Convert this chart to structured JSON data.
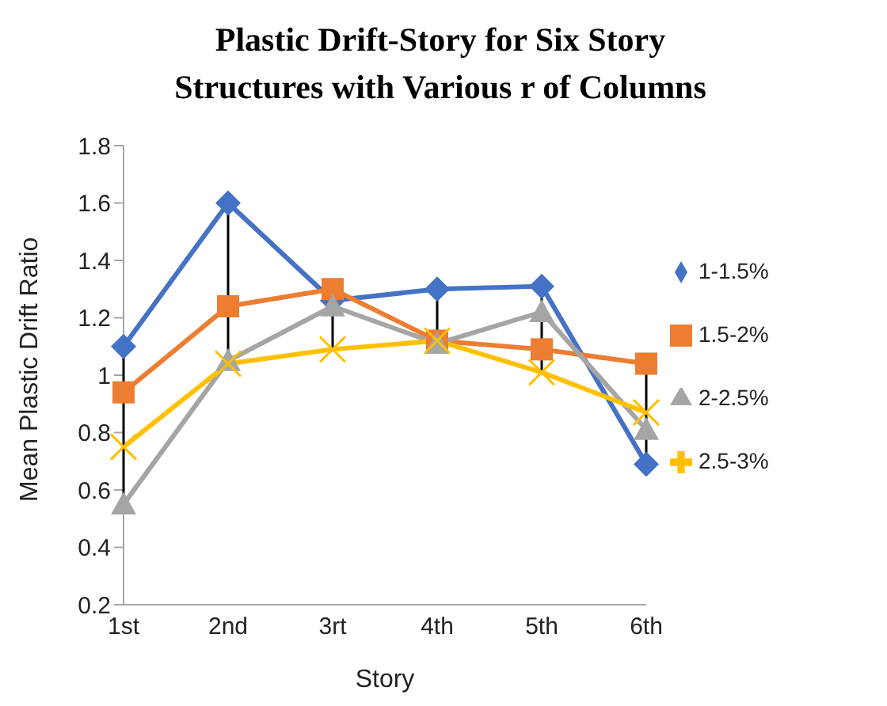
{
  "chart_data": {
    "type": "line",
    "title": "Plastic Drift-Story for Six Story Structures with Various r of Columns",
    "xlabel": "Story",
    "ylabel": "Mean Plastic Drift Ratio",
    "categories": [
      "1st",
      "2nd",
      "3rt",
      "4th",
      "5th",
      "6th"
    ],
    "series": [
      {
        "name": "1-1.5%",
        "color": "#4472c4",
        "marker": "diamond",
        "values": [
          1.1,
          1.6,
          1.26,
          1.3,
          1.31,
          0.69
        ]
      },
      {
        "name": "1.5-2%",
        "color": "#ed7d31",
        "marker": "square",
        "values": [
          0.94,
          1.24,
          1.3,
          1.12,
          1.09,
          1.04
        ]
      },
      {
        "name": "2-2.5%",
        "color": "#a5a5a5",
        "marker": "triangle",
        "values": [
          0.55,
          1.05,
          1.24,
          1.11,
          1.22,
          0.81
        ]
      },
      {
        "name": "2.5-3%",
        "color": "#ffc000",
        "marker": "cross",
        "values": [
          0.75,
          1.04,
          1.09,
          1.12,
          1.01,
          0.87
        ]
      }
    ],
    "ylim": [
      0.2,
      1.8
    ],
    "yticks": [
      0.2,
      0.4,
      0.6,
      0.8,
      1,
      1.2,
      1.4,
      1.6,
      1.8
    ],
    "grid": false,
    "legend": "right"
  }
}
